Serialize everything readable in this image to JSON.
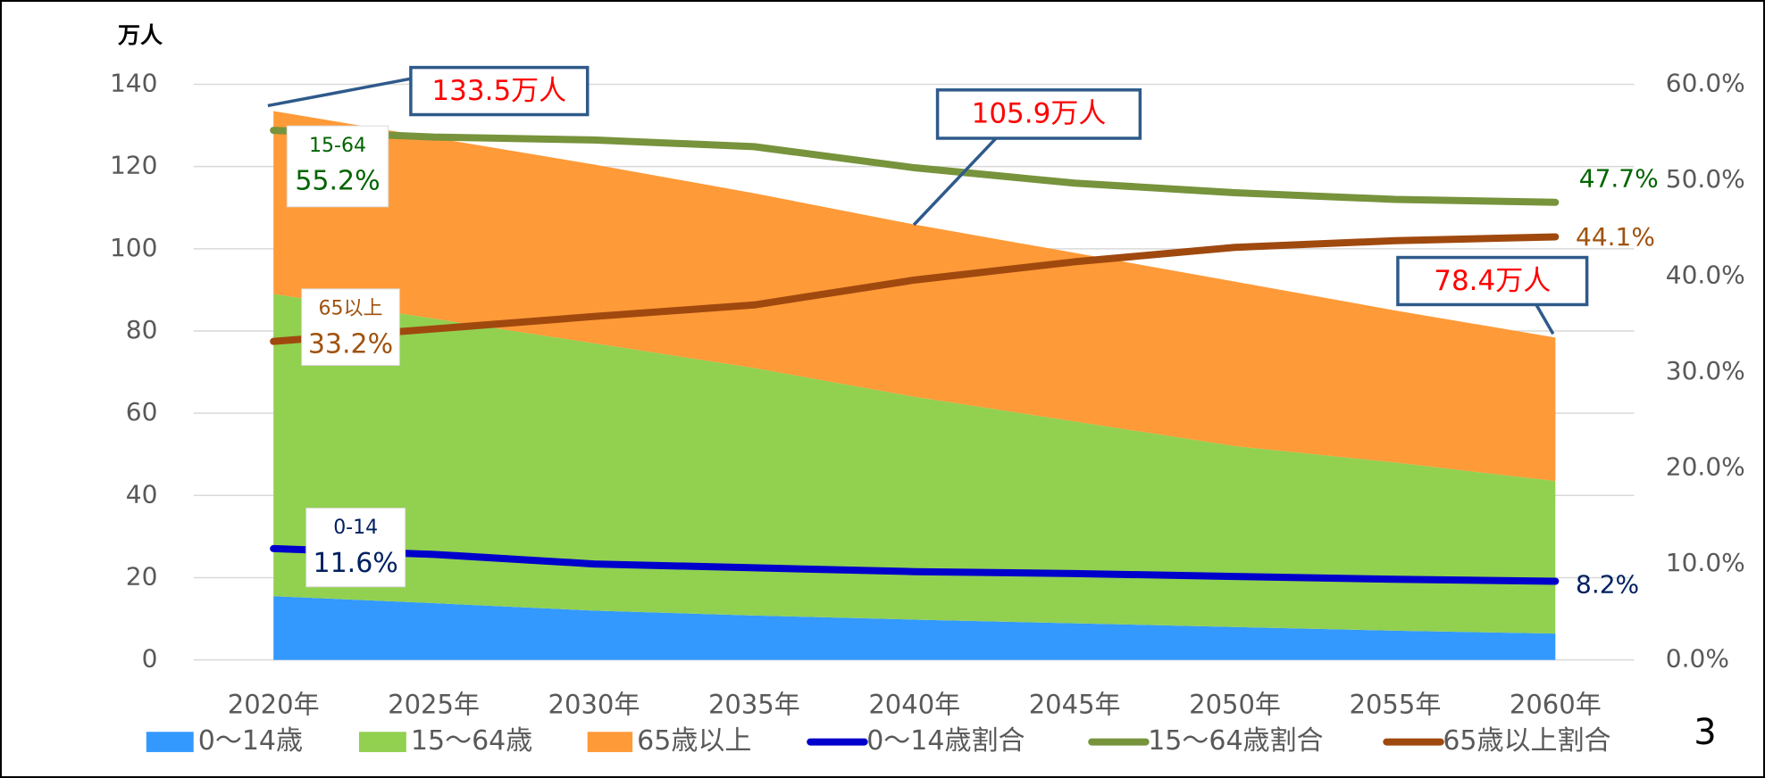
{
  "chart_data": {
    "type": "area",
    "y_label": "万人",
    "page_number": "3",
    "categories": [
      "2020年",
      "2025年",
      "2030年",
      "2035年",
      "2040年",
      "2045年",
      "2050年",
      "2055年",
      "2060年"
    ],
    "ylim": [
      0,
      140
    ],
    "yticks": [
      0,
      20,
      40,
      60,
      80,
      100,
      120,
      140
    ],
    "y2lim": [
      0,
      60
    ],
    "y2ticks": [
      {
        "value": 0,
        "label": "0.0%"
      },
      {
        "value": 10,
        "label": "10.0%"
      },
      {
        "value": 20,
        "label": "20.0%"
      },
      {
        "value": 30,
        "label": "30.0%"
      },
      {
        "value": 40,
        "label": "40.0%"
      },
      {
        "value": 50,
        "label": "50.0%"
      },
      {
        "value": 60,
        "label": "60.0%"
      }
    ],
    "grid": true,
    "series": [
      {
        "name": "0～14歳",
        "type": "area",
        "color": "#3399ff",
        "values": [
          15.5,
          13.8,
          12.0,
          10.8,
          9.8,
          8.9,
          8.0,
          7.1,
          6.4
        ]
      },
      {
        "name": "15～64歳",
        "type": "area",
        "color": "#92d050",
        "values": [
          73.5,
          69.2,
          65.0,
          60.2,
          54.2,
          49.1,
          44.0,
          40.9,
          37.1
        ]
      },
      {
        "name": "65歳以上",
        "type": "area",
        "color": "#ff9a38",
        "values": [
          44.5,
          44.0,
          43.5,
          42.5,
          41.9,
          41.0,
          40.0,
          37.0,
          34.9
        ]
      },
      {
        "name": "0～14歳割合",
        "type": "line",
        "axis": "y2",
        "color": "#0000cc",
        "label": "0-14",
        "label_color": "#002060",
        "values": [
          11.6,
          11.0,
          10.0,
          9.6,
          9.2,
          9.0,
          8.7,
          8.4,
          8.2
        ],
        "value_labels": [
          "11.6%",
          null,
          null,
          null,
          null,
          null,
          null,
          null,
          "8.2%"
        ]
      },
      {
        "name": "15～64歳割合",
        "type": "line",
        "axis": "y2",
        "color": "#77933c",
        "label": "15-64",
        "label_color": "#006400",
        "values": [
          55.2,
          54.5,
          54.2,
          53.5,
          51.3,
          49.7,
          48.7,
          48.0,
          47.7
        ],
        "value_labels": [
          "55.2%",
          null,
          null,
          null,
          null,
          null,
          null,
          null,
          "47.7%"
        ]
      },
      {
        "name": "65歳以上割合",
        "type": "line",
        "axis": "y2",
        "color": "#a0490f",
        "label": "65以上",
        "label_color": "#a0520f",
        "values": [
          33.2,
          34.5,
          35.8,
          37.0,
          39.6,
          41.5,
          43.0,
          43.7,
          44.1
        ],
        "value_labels": [
          "33.2%",
          null,
          null,
          null,
          null,
          null,
          null,
          null,
          "44.1%"
        ]
      }
    ],
    "annotations": [
      "133.5万人",
      "105.9万人",
      "78.4万人"
    ]
  }
}
